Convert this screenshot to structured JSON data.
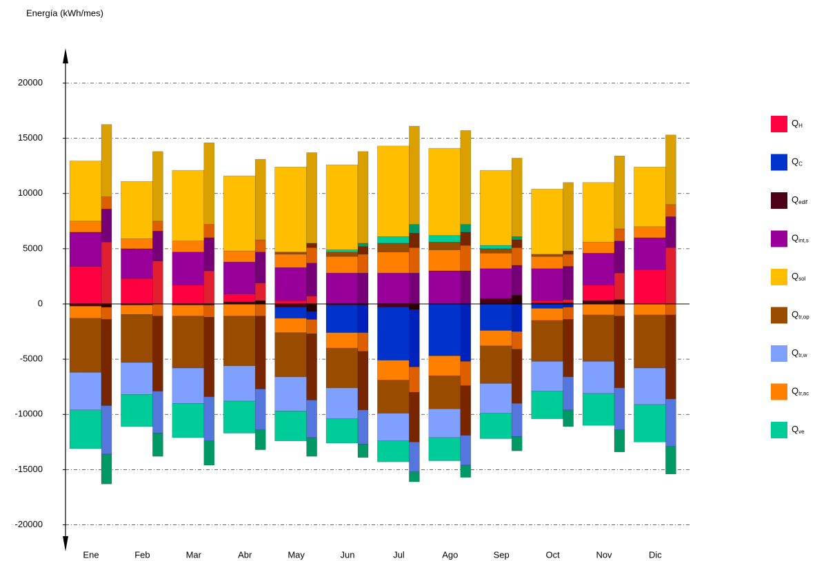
{
  "chart_data": {
    "type": "bar",
    "y_label": "Energía (kWh/mes)",
    "categories": [
      "Ene",
      "Feb",
      "Mar",
      "Abr",
      "May",
      "Jun",
      "Jul",
      "Ago",
      "Sep",
      "Oct",
      "Nov",
      "Dic"
    ],
    "ylim": [
      -22400,
      23150
    ],
    "yticks": [
      -20000,
      -15000,
      -10000,
      -5000,
      0,
      5000,
      10000,
      15000,
      20000
    ],
    "grid": true,
    "series": [
      {
        "name": "Q",
        "sub": "H",
        "color": "#ff0040",
        "color_2": "#e0202f",
        "values": [
          3400,
          2300,
          1700,
          700,
          300,
          0,
          0,
          0,
          0,
          200,
          1400,
          3100
        ],
        "values_2": [
          5600,
          3900,
          3000,
          1600,
          700,
          0,
          0,
          0,
          0,
          300,
          2400,
          5100
        ]
      },
      {
        "name": "Q",
        "sub": "C",
        "color": "#0033cc",
        "color_2": "#0022bb",
        "values": [
          0,
          0,
          0,
          0,
          -1000,
          -2500,
          -4800,
          -4700,
          -2400,
          -400,
          0,
          0
        ],
        "values_2": [
          0,
          0,
          0,
          0,
          -700,
          -2500,
          -5200,
          -5200,
          -2500,
          -300,
          0,
          0
        ]
      },
      {
        "name": "Q",
        "sub": "edif",
        "color": "#4d0015",
        "color_2": "#2a0000",
        "values": [
          -200,
          -100,
          -100,
          200,
          -300,
          -100,
          -300,
          0,
          500,
          100,
          300,
          0
        ],
        "values_2": [
          -300,
          0,
          -100,
          300,
          -700,
          -100,
          -500,
          0,
          800,
          100,
          400,
          0
        ]
      },
      {
        "name": "Q",
        "sub": "int,s",
        "color": "#990099",
        "color_2": "#770077",
        "values": [
          3100,
          2700,
          3000,
          2900,
          3000,
          2800,
          2800,
          3000,
          2700,
          2900,
          2900,
          2900
        ],
        "values_2": [
          3000,
          2700,
          3000,
          2800,
          3000,
          2800,
          2800,
          3000,
          2700,
          3000,
          2900,
          2800
        ]
      },
      {
        "name": "Q",
        "sub": "sol",
        "color": "#ffbf00",
        "color_2": "#d9a000",
        "values": [
          5450,
          5200,
          6400,
          6800,
          7700,
          7700,
          8200,
          7900,
          6800,
          5900,
          5400,
          5400
        ],
        "values_2": [
          6550,
          6300,
          7400,
          7300,
          8200,
          8300,
          8900,
          8500,
          7100,
          6200,
          6600,
          6300
        ]
      },
      {
        "name": "Q",
        "sub": "tr,op",
        "color": "#994c00",
        "color_2": "#772600",
        "values": [
          -4900,
          -4350,
          -4700,
          -4500,
          -4000,
          -3600,
          -3000,
          -3000,
          -3400,
          -3700,
          -4200,
          -4800
        ],
        "values_2": [
          -7800,
          -6800,
          -7200,
          -6600,
          -6000,
          -5300,
          -4500,
          -4500,
          -4900,
          -5200,
          -6500,
          -7600
        ],
        "gains": [
          0,
          0,
          0,
          0,
          200,
          400,
          800,
          700,
          400,
          200,
          0,
          0
        ],
        "gains_2": [
          0,
          0,
          0,
          0,
          400,
          700,
          1300,
          1200,
          700,
          300,
          0,
          0
        ]
      },
      {
        "name": "Q",
        "sub": "tr,w",
        "color": "#80a0ff",
        "color_2": "#5577dd",
        "values": [
          -3400,
          -2900,
          -3200,
          -3200,
          -3100,
          -2800,
          -2500,
          -2600,
          -2700,
          -2700,
          -2900,
          -3300
        ],
        "values_2": [
          -4400,
          -3800,
          -4000,
          -3700,
          -3400,
          -3100,
          -2700,
          -2700,
          -3000,
          -3000,
          -3800,
          -4300
        ]
      },
      {
        "name": "Q",
        "sub": "tr,ac",
        "color": "#ff8000",
        "color_2": "#dd5f00",
        "values": [
          -1100,
          -850,
          -1000,
          -1100,
          -1300,
          -1400,
          -1800,
          -1800,
          -1400,
          -1100,
          -1000,
          -1000
        ],
        "values_2": [
          -1100,
          -1100,
          -1100,
          -1100,
          -1300,
          -1700,
          -2300,
          -2200,
          -1600,
          -1100,
          -1100,
          -1000
        ],
        "gains": [
          1000,
          900,
          1000,
          1000,
          1200,
          1500,
          1900,
          1900,
          1400,
          1100,
          1000,
          1000
        ],
        "gains_2": [
          1100,
          900,
          1200,
          1100,
          1400,
          1700,
          2300,
          2300,
          1600,
          1100,
          1100,
          1100
        ]
      },
      {
        "name": "Q",
        "sub": "ve",
        "color": "#00cc99",
        "color_2": "#009966",
        "values": [
          -3500,
          -2900,
          -3100,
          -2900,
          -2700,
          -2200,
          -1900,
          -2100,
          -2300,
          -2500,
          -2900,
          -3400
        ],
        "values_2": [
          -2700,
          -2100,
          -2200,
          -1800,
          -1700,
          -1200,
          -900,
          -1100,
          -1300,
          -1500,
          -2000,
          -2500
        ],
        "gains": [
          0,
          0,
          0,
          0,
          0,
          200,
          600,
          600,
          300,
          0,
          0,
          0
        ],
        "gains_2": [
          0,
          0,
          0,
          0,
          0,
          300,
          800,
          700,
          300,
          0,
          0,
          0
        ]
      }
    ]
  }
}
